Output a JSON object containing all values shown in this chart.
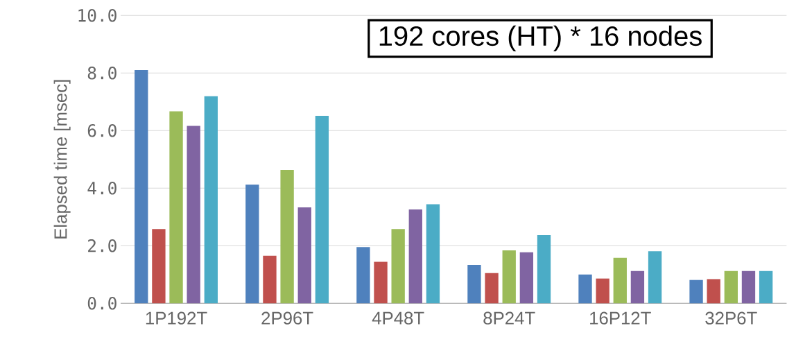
{
  "chart_data": {
    "type": "bar",
    "ylabel": "Elapsed time [msec]",
    "annotations": [
      "192 cores (HT) * 16 nodes"
    ],
    "categories": [
      "1P192T",
      "2P96T",
      "4P48T",
      "8P24T",
      "16P12T",
      "32P6T"
    ],
    "series": [
      {
        "color": "#4f81bd",
        "values": [
          8.1,
          4.12,
          1.95,
          1.33,
          1.0,
          0.81
        ]
      },
      {
        "color": "#c0504d",
        "values": [
          2.58,
          1.65,
          1.44,
          1.05,
          0.86,
          0.84
        ]
      },
      {
        "color": "#9bbb59",
        "values": [
          6.67,
          4.63,
          2.58,
          1.84,
          1.58,
          1.12
        ]
      },
      {
        "color": "#8064a2",
        "values": [
          6.16,
          3.33,
          3.26,
          1.77,
          1.12,
          1.12
        ]
      },
      {
        "color": "#4bacc6",
        "values": [
          7.19,
          6.51,
          3.44,
          2.37,
          1.81,
          1.12
        ]
      }
    ],
    "ylim": [
      0,
      10
    ],
    "yticks": [
      {
        "value": 0,
        "label": "0.0"
      },
      {
        "value": 2,
        "label": "2.0"
      },
      {
        "value": 4,
        "label": "4.0"
      },
      {
        "value": 6,
        "label": "6.0"
      },
      {
        "value": 8,
        "label": "8.0"
      },
      {
        "value": 10,
        "label": "10.0"
      }
    ],
    "grid": "y"
  }
}
